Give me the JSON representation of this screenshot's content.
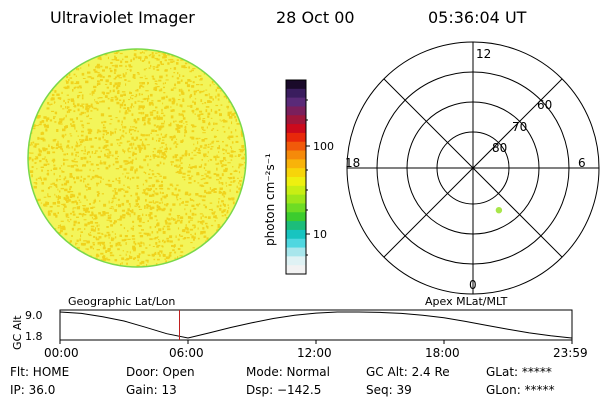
{
  "header": {
    "instrument": "Ultraviolet Imager",
    "date": "28 Oct 00",
    "time": "05:36:04 UT"
  },
  "colorbar": {
    "unit_label": "photon cm⁻²s⁻¹",
    "tick_labels": [
      "100",
      "10"
    ],
    "colors": [
      "#1a0a2a",
      "#3a1d5e",
      "#5a2a78",
      "#7a1f5c",
      "#a0163a",
      "#cc0a1c",
      "#e8280a",
      "#f15a0a",
      "#f58a0a",
      "#f8b30a",
      "#f7d50a",
      "#eef010",
      "#c8ee14",
      "#9ee61a",
      "#6edc24",
      "#3ccc2e",
      "#1cbd7a",
      "#18c4c0",
      "#4fd7e0",
      "#a8e6ec",
      "#dff2f4",
      "#f2f2f2"
    ]
  },
  "polar": {
    "mlt_labels": {
      "top": "12",
      "bottom": "0",
      "left": "18",
      "right": "6"
    },
    "lat_labels": [
      "60",
      "70",
      "80"
    ],
    "point": {
      "mlt": 2.1,
      "mlat": 73.5,
      "color": "#a8e64a"
    }
  },
  "disk": {
    "base_color": "#f3f55a",
    "speck_color": "#f0d21c",
    "edge_color": "#7ad84a"
  },
  "timeline": {
    "left_label": "Geographic Lat/Lon",
    "right_label": "Apex MLat/MLT",
    "axis_label": "GC Alt",
    "y_ticks": [
      "9.0",
      "1.8"
    ],
    "x_ticks": [
      "00:00",
      "06:00",
      "12:00",
      "18:00",
      "23:59"
    ],
    "marker_hour": 5.6,
    "marker_color": "#c02020",
    "altitude_curve": [
      [
        0.0,
        9.0
      ],
      [
        1.0,
        8.6
      ],
      [
        2.0,
        7.7
      ],
      [
        3.0,
        6.5
      ],
      [
        4.0,
        4.8
      ],
      [
        5.0,
        3.0
      ],
      [
        6.0,
        1.8
      ],
      [
        7.0,
        3.2
      ],
      [
        8.0,
        4.7
      ],
      [
        9.0,
        6.0
      ],
      [
        10.0,
        7.2
      ],
      [
        11.0,
        8.1
      ],
      [
        12.0,
        8.7
      ],
      [
        13.0,
        9.0
      ],
      [
        14.0,
        9.0
      ],
      [
        15.0,
        8.9
      ],
      [
        16.0,
        8.6
      ],
      [
        17.0,
        8.1
      ],
      [
        18.0,
        7.4
      ],
      [
        19.0,
        6.4
      ],
      [
        20.0,
        5.3
      ],
      [
        21.0,
        4.2
      ],
      [
        22.0,
        3.2
      ],
      [
        23.0,
        2.4
      ],
      [
        23.98,
        1.8
      ]
    ]
  },
  "status": {
    "flt": "Flt: HOME",
    "ip": "IP: 36.0",
    "door": "Door: Open",
    "gain": "Gain: 13",
    "mode": "Mode: Normal",
    "dsp": "Dsp: −142.5",
    "gcalt": "GC Alt: 2.4 Re",
    "seq": "Seq: 39",
    "glat": "GLat: *****",
    "glon": "GLon: *****"
  }
}
